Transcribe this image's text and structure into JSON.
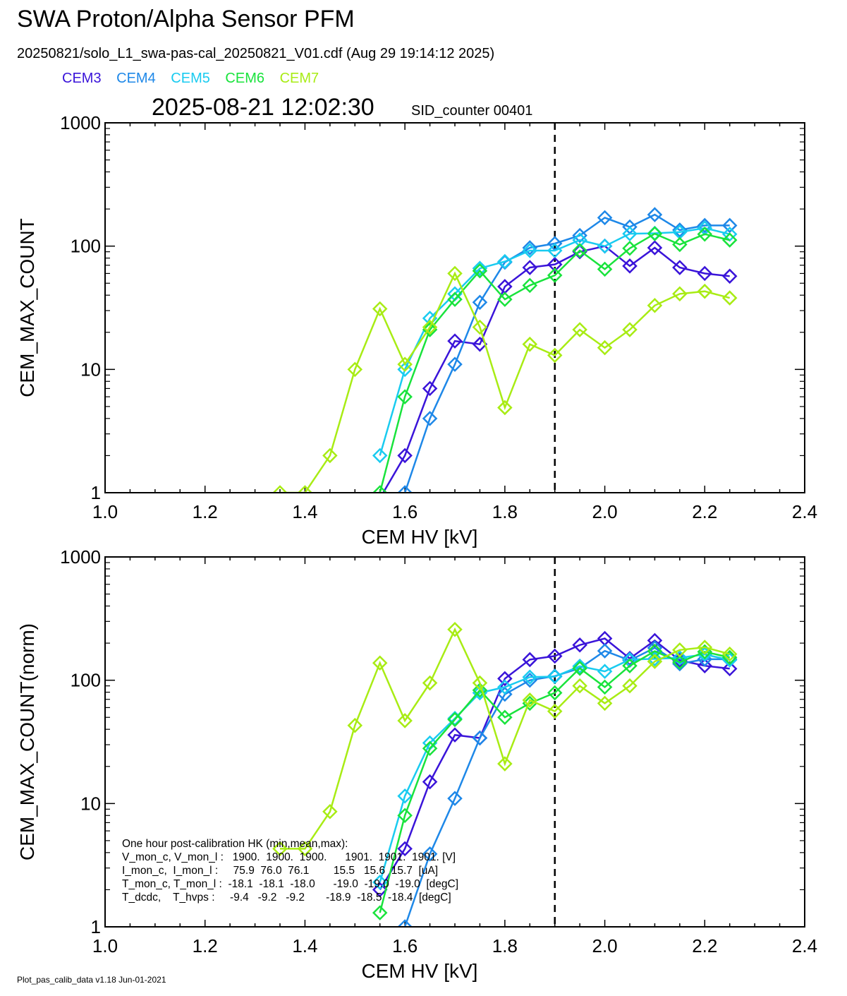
{
  "title": "SWA Proton/Alpha Sensor PFM",
  "file_line": "20250821/solo_L1_swa-pas-cal_20250821_V01.cdf  (Aug 29 19:14:12 2025)",
  "timestamp": "2025-08-21 12:02:30",
  "sid_label": "SID_counter 00401",
  "footer": "Plot_pas_calib_data v1.18 Jun-01-2021",
  "colors": {
    "CEM3": "#3a14d9",
    "CEM4": "#1e88e8",
    "CEM5": "#19cbf0",
    "CEM6": "#19e33c",
    "CEM7": "#a8ec14"
  },
  "legend": [
    "CEM3",
    "CEM4",
    "CEM5",
    "CEM6",
    "CEM7"
  ],
  "hk_box": {
    "lines": [
      "One hour post-calibration HK (min,mean,max):",
      "V_mon_c, V_mon_l :   1900.  1900.  1900.      1901.  1901.  1901. [V]",
      "I_mon_c,  I_mon_l :     75.9  76.0  76.1        15.5   15.6  15.7  [uA]",
      "T_mon_c, T_mon_l :  -18.1  -18.1  -18.0      -19.0  -19.0  -19.0  [degC]",
      "T_dcdc,    T_hvps :     -9.4   -9.2   -9.2       -18.9  -18.5  -18.4  [degC]"
    ]
  },
  "chart_data": [
    {
      "type": "line",
      "xlabel": "CEM HV [kV]",
      "ylabel": "CEM_MAX_COUNT",
      "xlim": [
        1.0,
        2.4
      ],
      "ylim": [
        1,
        1000
      ],
      "yscale": "log",
      "x_ticks": [
        "1.0",
        "1.2",
        "1.4",
        "1.6",
        "1.8",
        "2.0",
        "2.2",
        "2.4"
      ],
      "y_ticks": [
        "1",
        "10",
        "100",
        "1000"
      ],
      "vline_x": 1.9,
      "series": [
        {
          "name": "CEM3",
          "x": [
            1.55,
            1.6,
            1.65,
            1.7,
            1.75,
            1.8,
            1.85,
            1.9,
            1.95,
            2.0,
            2.05,
            2.1,
            2.15,
            2.2,
            2.25
          ],
          "y": [
            0.9,
            2,
            7,
            17,
            16,
            47,
            67,
            71,
            90,
            100,
            69,
            97,
            67,
            60,
            57
          ]
        },
        {
          "name": "CEM4",
          "x": [
            1.6,
            1.65,
            1.7,
            1.75,
            1.8,
            1.85,
            1.9,
            1.95,
            2.0,
            2.05,
            2.1,
            2.15,
            2.2,
            2.25
          ],
          "y": [
            1.0,
            4,
            11,
            35,
            74,
            97,
            105,
            122,
            170,
            143,
            180,
            135,
            147,
            147
          ]
        },
        {
          "name": "CEM5",
          "x": [
            1.55,
            1.6,
            1.65,
            1.7,
            1.75,
            1.8,
            1.85,
            1.9,
            1.95,
            2.0,
            2.05,
            2.1,
            2.15,
            2.2,
            2.25
          ],
          "y": [
            2,
            10,
            26,
            41,
            66,
            75,
            92,
            92,
            112,
            100,
            126,
            127,
            130,
            140,
            125
          ]
        },
        {
          "name": "CEM6",
          "x": [
            1.55,
            1.6,
            1.65,
            1.7,
            1.75,
            1.8,
            1.85,
            1.9,
            1.95,
            2.0,
            2.05,
            2.1,
            2.15,
            2.2,
            2.25
          ],
          "y": [
            1.0,
            6,
            21,
            37,
            63,
            37,
            48,
            58,
            92,
            65,
            96,
            126,
            103,
            125,
            112
          ]
        },
        {
          "name": "CEM7",
          "x": [
            1.35,
            1.4,
            1.45,
            1.5,
            1.55,
            1.6,
            1.65,
            1.7,
            1.75,
            1.8,
            1.85,
            1.9,
            1.95,
            2.0,
            2.05,
            2.1,
            2.15,
            2.2,
            2.25
          ],
          "y": [
            1.0,
            1.0,
            2,
            10,
            31,
            11,
            22,
            60,
            22,
            4.9,
            16,
            13,
            21,
            15,
            21,
            33,
            41,
            43,
            38
          ]
        }
      ]
    },
    {
      "type": "line",
      "xlabel": "CEM HV [kV]",
      "ylabel": "CEM_MAX_COUNT(norm)",
      "xlim": [
        1.0,
        2.4
      ],
      "ylim": [
        1,
        1000
      ],
      "yscale": "log",
      "x_ticks": [
        "1.0",
        "1.2",
        "1.4",
        "1.6",
        "1.8",
        "2.0",
        "2.2",
        "2.4"
      ],
      "y_ticks": [
        "1",
        "10",
        "100",
        "1000"
      ],
      "vline_x": 1.9,
      "series": [
        {
          "name": "CEM3",
          "x": [
            1.55,
            1.6,
            1.65,
            1.7,
            1.75,
            1.8,
            1.85,
            1.9,
            1.95,
            2.0,
            2.05,
            2.1,
            2.15,
            2.2,
            2.25
          ],
          "y": [
            2.0,
            4.3,
            15,
            36,
            34,
            103,
            147,
            157,
            193,
            218,
            150,
            210,
            145,
            131,
            124
          ]
        },
        {
          "name": "CEM4",
          "x": [
            1.6,
            1.65,
            1.7,
            1.75,
            1.8,
            1.85,
            1.9,
            1.95,
            2.0,
            2.05,
            2.1,
            2.15,
            2.2,
            2.25
          ],
          "y": [
            1.0,
            3.9,
            11,
            34,
            77,
            100,
            108,
            125,
            173,
            145,
            183,
            136,
            148,
            148
          ]
        },
        {
          "name": "CEM5",
          "x": [
            1.55,
            1.6,
            1.65,
            1.7,
            1.75,
            1.8,
            1.85,
            1.9,
            1.95,
            2.0,
            2.05,
            2.1,
            2.15,
            2.2,
            2.25
          ],
          "y": [
            2.3,
            11.5,
            31,
            49,
            79,
            88,
            106,
            107,
            130,
            118,
            147,
            149,
            152,
            162,
            146
          ]
        },
        {
          "name": "CEM6",
          "x": [
            1.55,
            1.6,
            1.65,
            1.7,
            1.75,
            1.8,
            1.85,
            1.9,
            1.95,
            2.0,
            2.05,
            2.1,
            2.15,
            2.2,
            2.25
          ],
          "y": [
            1.3,
            8,
            28,
            48,
            83,
            50,
            65,
            79,
            125,
            88,
            131,
            172,
            140,
            170,
            153
          ]
        },
        {
          "name": "CEM7",
          "x": [
            1.35,
            1.4,
            1.45,
            1.5,
            1.55,
            1.6,
            1.65,
            1.7,
            1.75,
            1.8,
            1.85,
            1.9,
            1.95,
            2.0,
            2.05,
            2.1,
            2.15,
            2.2,
            2.25
          ],
          "y": [
            4.3,
            4.3,
            8.6,
            43,
            138,
            47,
            95,
            258,
            95,
            21,
            69,
            56,
            90,
            65,
            90,
            142,
            176,
            185,
            163
          ]
        }
      ]
    }
  ]
}
